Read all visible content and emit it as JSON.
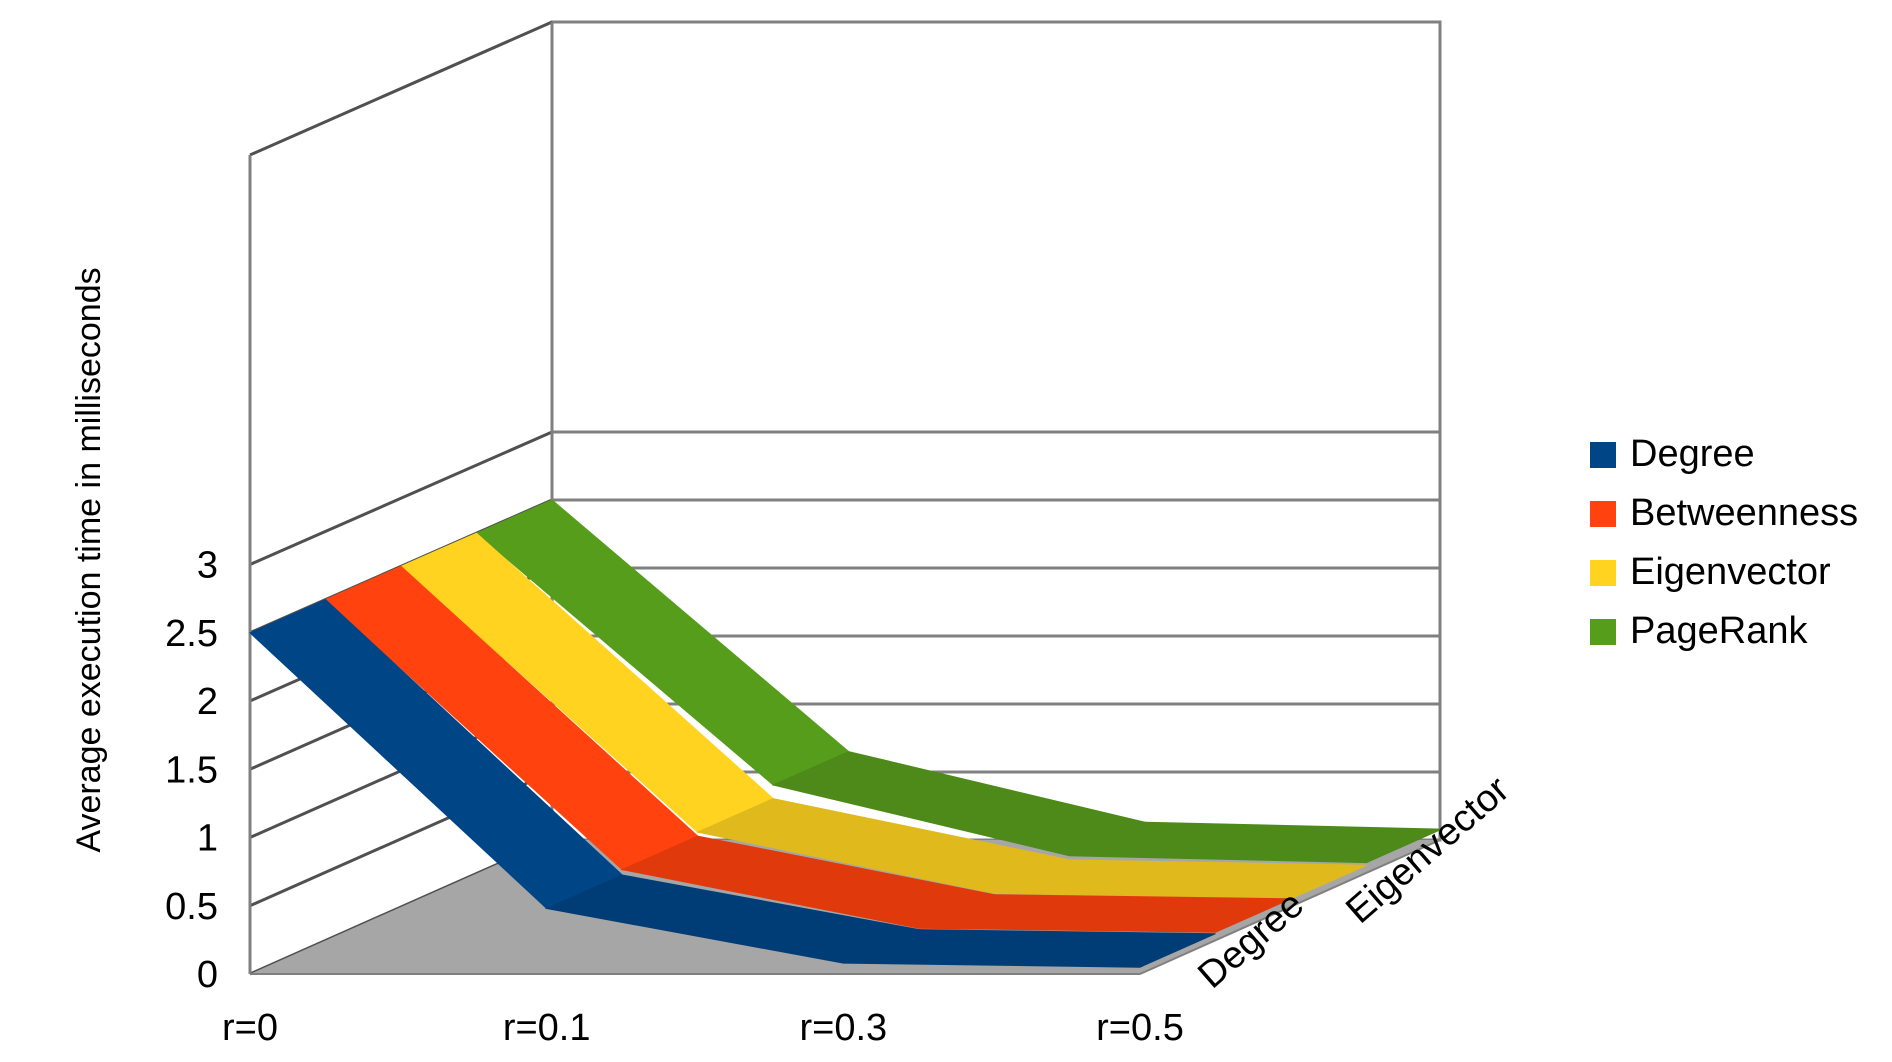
{
  "chart_data": {
    "type": "area",
    "style": "3d-ribbon",
    "categories": [
      "r=0",
      "r=0.1",
      "r=0.3",
      "r=0.5"
    ],
    "depth_axis_labels": [
      "Degree",
      "Eigenvector"
    ],
    "ylabel": "Average execution time in milliseconds",
    "xlabel": "",
    "ylim": [
      0,
      3
    ],
    "yticks": [
      "0",
      "0.5",
      "1",
      "1.5",
      "2",
      "2.5",
      "3"
    ],
    "grid": true,
    "legend_position": "right",
    "series": [
      {
        "name": "Degree",
        "color": "#004586",
        "values": [
          2.5,
          0.48,
          0.08,
          0.05
        ]
      },
      {
        "name": "Betweenness",
        "color": "#ff420e",
        "values": [
          2.5,
          0.52,
          0.09,
          0.06
        ]
      },
      {
        "name": "Eigenvector",
        "color": "#ffd320",
        "values": [
          2.5,
          0.55,
          0.1,
          0.06
        ]
      },
      {
        "name": "PageRank",
        "color": "#579d1c",
        "values": [
          2.5,
          0.65,
          0.13,
          0.08
        ]
      }
    ],
    "floor_color": "#a6a6a6"
  }
}
